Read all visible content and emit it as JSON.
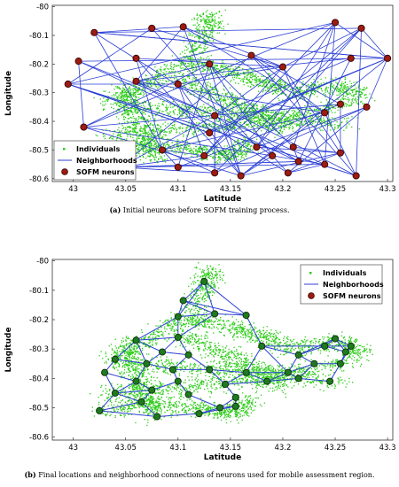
{
  "chart_data": [
    {
      "type": "scatter",
      "xlabel": "Latitude",
      "ylabel": "Longitude",
      "xlim": [
        42.98,
        43.305
      ],
      "ylim": [
        -80.61,
        -79.995
      ],
      "xticks": [
        43,
        43.05,
        43.1,
        43.15,
        43.2,
        43.25,
        43.3
      ],
      "xtick_labels": [
        "43",
        "43.05",
        "43.1",
        "43.15",
        "43.2",
        "43.25",
        "43.3"
      ],
      "yticks": [
        -80,
        -80.1,
        -80.2,
        -80.3,
        -80.4,
        -80.5,
        -80.6
      ],
      "ytick_labels": [
        "-80",
        "-80.1",
        "-80.2",
        "-80.3",
        "-80.4",
        "-80.5",
        "-80.6"
      ],
      "legend": {
        "position": "bottom-left",
        "entries": [
          {
            "label": "Individuals",
            "marker": "point",
            "color": "#2ecc1a"
          },
          {
            "label": "Neighborhoods",
            "marker": "line",
            "color": "#2c3fd6"
          },
          {
            "label": "SOFM neurons",
            "marker": "circle",
            "color": "#9b1c10"
          }
        ]
      },
      "colors": {
        "individuals": "#2ecc1a",
        "neighborhoods": "#2c3fd6",
        "neuron_fill": "#9b1c10",
        "neuron_edge": "#3a0000"
      },
      "neurons": [
        [
          43.02,
          -80.09
        ],
        [
          43.075,
          -80.075
        ],
        [
          43.105,
          -80.07
        ],
        [
          43.005,
          -80.19
        ],
        [
          43.06,
          -80.18
        ],
        [
          43.13,
          -80.2
        ],
        [
          43.17,
          -80.17
        ],
        [
          43.25,
          -80.055
        ],
        [
          43.275,
          -80.075
        ],
        [
          43.3,
          -80.18
        ],
        [
          43.265,
          -80.18
        ],
        [
          43.2,
          -80.21
        ],
        [
          42.995,
          -80.27
        ],
        [
          43.06,
          -80.26
        ],
        [
          43.1,
          -80.27
        ],
        [
          43.24,
          -80.37
        ],
        [
          43.255,
          -80.34
        ],
        [
          43.28,
          -80.35
        ],
        [
          43.135,
          -80.38
        ],
        [
          43.13,
          -80.44
        ],
        [
          43.01,
          -80.42
        ],
        [
          43.085,
          -80.5
        ],
        [
          43.175,
          -80.49
        ],
        [
          43.19,
          -80.52
        ],
        [
          43.21,
          -80.49
        ],
        [
          43.215,
          -80.54
        ],
        [
          43.24,
          -80.55
        ],
        [
          43.255,
          -80.51
        ],
        [
          43.1,
          -80.56
        ],
        [
          43.135,
          -80.58
        ],
        [
          43.16,
          -80.59
        ],
        [
          43.205,
          -80.58
        ],
        [
          43.27,
          -80.59
        ],
        [
          43.045,
          -80.56
        ],
        [
          43.125,
          -80.52
        ]
      ]
    },
    {
      "type": "scatter",
      "xlabel": "Latitude",
      "ylabel": "Longitude",
      "xlim": [
        42.98,
        43.305
      ],
      "ylim": [
        -80.61,
        -79.995
      ],
      "xticks": [
        43,
        43.05,
        43.1,
        43.15,
        43.2,
        43.25,
        43.3
      ],
      "xtick_labels": [
        "43",
        "43.05",
        "43.1",
        "43.15",
        "43.2",
        "43.25",
        "43.3"
      ],
      "yticks": [
        -80,
        -80.1,
        -80.2,
        -80.3,
        -80.4,
        -80.5,
        -80.6
      ],
      "ytick_labels": [
        "-80",
        "-80.1",
        "-80.2",
        "-80.3",
        "-80.4",
        "-80.5",
        "-80.6"
      ],
      "legend": {
        "position": "top-right",
        "entries": [
          {
            "label": "Individuals",
            "marker": "point",
            "color": "#2ecc1a"
          },
          {
            "label": "Neighborhoods",
            "marker": "line",
            "color": "#2c3fd6"
          },
          {
            "label": "SOFM neurons",
            "marker": "circle",
            "color": "#9b1c10"
          }
        ]
      },
      "colors": {
        "individuals": "#2ecc1a",
        "neighborhoods": "#2c3fd6",
        "neuron_fill": "#1f7a1f",
        "neuron_edge": "#0c2f0c"
      },
      "neurons": [
        [
          43.125,
          -80.07
        ],
        [
          43.105,
          -80.135
        ],
        [
          43.1,
          -80.19
        ],
        [
          43.135,
          -80.18
        ],
        [
          43.165,
          -80.185
        ],
        [
          43.06,
          -80.27
        ],
        [
          43.1,
          -80.26
        ],
        [
          43.18,
          -80.29
        ],
        [
          43.085,
          -80.31
        ],
        [
          43.11,
          -80.32
        ],
        [
          43.25,
          -80.265
        ],
        [
          43.24,
          -80.29
        ],
        [
          43.265,
          -80.29
        ],
        [
          43.215,
          -80.32
        ],
        [
          43.26,
          -80.31
        ],
        [
          43.04,
          -80.335
        ],
        [
          43.07,
          -80.35
        ],
        [
          43.095,
          -80.37
        ],
        [
          43.13,
          -80.37
        ],
        [
          43.165,
          -80.38
        ],
        [
          43.205,
          -80.38
        ],
        [
          43.23,
          -80.35
        ],
        [
          43.255,
          -80.35
        ],
        [
          43.03,
          -80.38
        ],
        [
          43.06,
          -80.41
        ],
        [
          43.1,
          -80.41
        ],
        [
          43.145,
          -80.42
        ],
        [
          43.185,
          -80.41
        ],
        [
          43.215,
          -80.4
        ],
        [
          43.245,
          -80.41
        ],
        [
          43.04,
          -80.45
        ],
        [
          43.075,
          -80.44
        ],
        [
          43.11,
          -80.455
        ],
        [
          43.155,
          -80.465
        ],
        [
          43.025,
          -80.51
        ],
        [
          43.065,
          -80.48
        ],
        [
          43.08,
          -80.53
        ],
        [
          43.12,
          -80.52
        ],
        [
          43.14,
          -80.5
        ],
        [
          43.155,
          -80.495
        ]
      ]
    }
  ],
  "captions": {
    "a_label": "(a)",
    "a_text": " Initial neurons before SOFM training process.",
    "b_label": "(b)",
    "b_text": " Final locations and neighborhood connections of neurons used for mobile assessment region."
  }
}
